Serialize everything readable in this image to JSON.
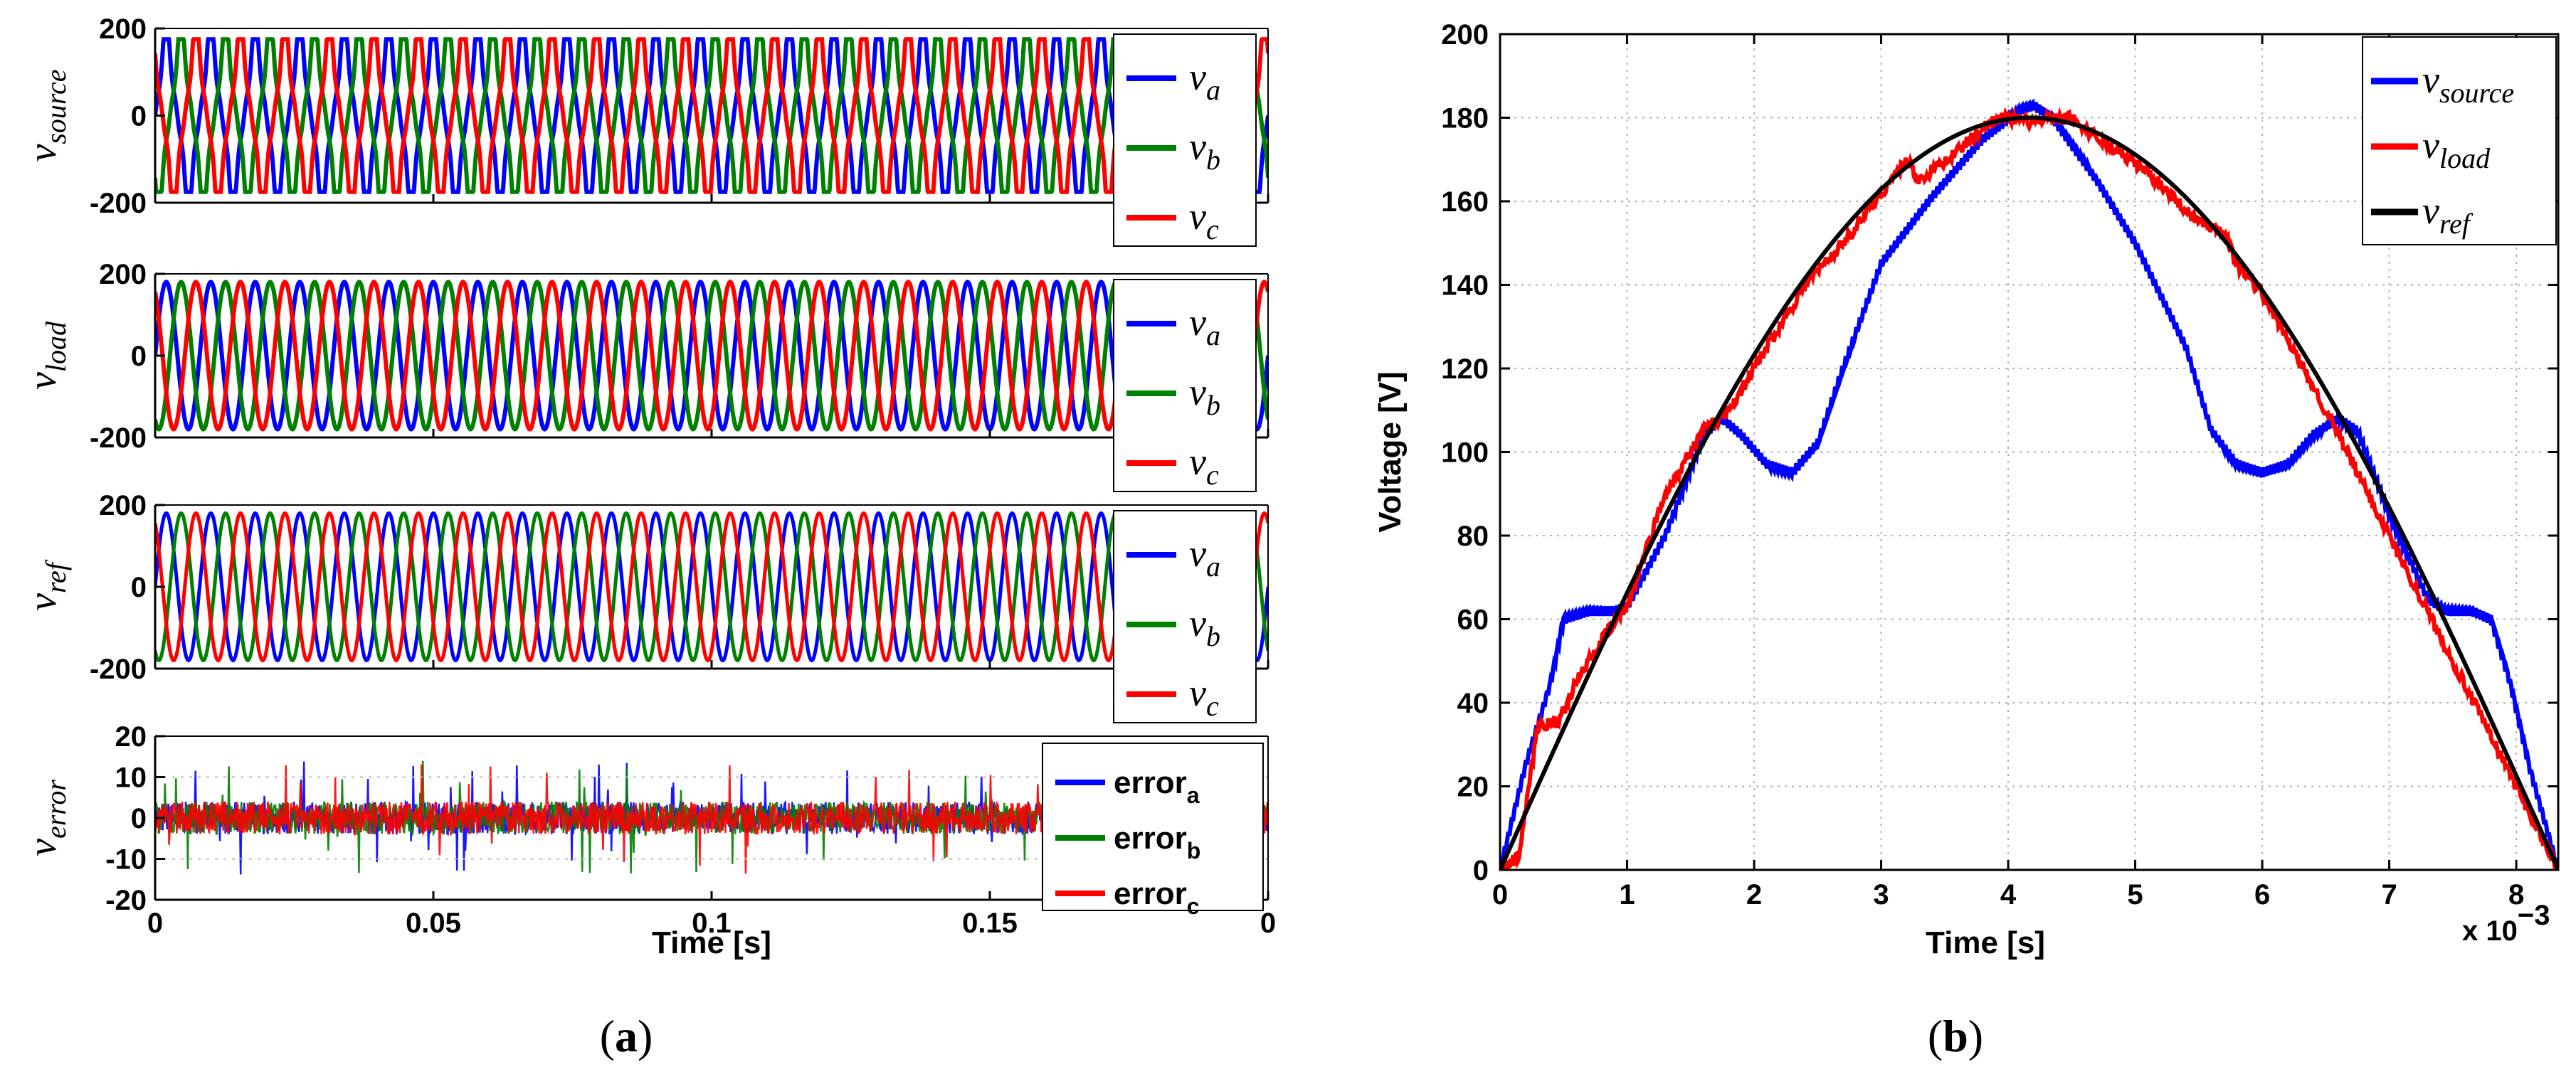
{
  "chart_data": [
    {
      "panel": "a",
      "type": "line",
      "caption": {
        "open": "(",
        "letter": "a",
        "close": ")"
      },
      "xlabel": "Time [s]",
      "x_ticks": [
        "0",
        "0.05",
        "0.1",
        "0.15",
        "0"
      ],
      "xlim": [
        0,
        0.2
      ],
      "subplots": [
        {
          "ylabel": {
            "base": "v",
            "sub": "source"
          },
          "ylim": [
            -200,
            200
          ],
          "y_ticks": [
            "200",
            "0",
            "-200"
          ],
          "signal": "distorted three-phase sine, amplitude ~180 V, ~120 Hz cycles shown",
          "series": [
            {
              "name": "v_a",
              "legend_base": "v",
              "legend_sub": "a",
              "color": "#0000ff"
            },
            {
              "name": "v_b",
              "legend_base": "v",
              "legend_sub": "b",
              "color": "#008000"
            },
            {
              "name": "v_c",
              "legend_base": "v",
              "legend_sub": "c",
              "color": "#ff0000"
            }
          ]
        },
        {
          "ylabel": {
            "base": "v",
            "sub": "load"
          },
          "ylim": [
            -200,
            200
          ],
          "y_ticks": [
            "200",
            "0",
            "-200"
          ],
          "signal": "three-phase sine, amplitude ~180 V",
          "series": [
            {
              "name": "v_a",
              "legend_base": "v",
              "legend_sub": "a",
              "color": "#0000ff"
            },
            {
              "name": "v_b",
              "legend_base": "v",
              "legend_sub": "b",
              "color": "#008000"
            },
            {
              "name": "v_c",
              "legend_base": "v",
              "legend_sub": "c",
              "color": "#ff0000"
            }
          ]
        },
        {
          "ylabel": {
            "base": "v",
            "sub": "ref"
          },
          "ylim": [
            -200,
            200
          ],
          "y_ticks": [
            "200",
            "0",
            "-200"
          ],
          "signal": "ideal three-phase sine, amplitude ~180 V",
          "series": [
            {
              "name": "v_a",
              "legend_base": "v",
              "legend_sub": "a",
              "color": "#0000ff"
            },
            {
              "name": "v_b",
              "legend_base": "v",
              "legend_sub": "b",
              "color": "#008000"
            },
            {
              "name": "v_c",
              "legend_base": "v",
              "legend_sub": "c",
              "color": "#ff0000"
            }
          ]
        },
        {
          "ylabel": {
            "base": "v",
            "sub": "error"
          },
          "ylim": [
            -20,
            20
          ],
          "y_ticks": [
            "20",
            "10",
            "0",
            "-10",
            "-20"
          ],
          "signal": "noise around 0, mostly within ±5 V with spikes up to ±15 V",
          "series": [
            {
              "name": "error_a",
              "legend_base": "error",
              "legend_sub": "a",
              "color": "#0000ff"
            },
            {
              "name": "error_b",
              "legend_base": "error",
              "legend_sub": "b",
              "color": "#008000"
            },
            {
              "name": "error_c",
              "legend_base": "error",
              "legend_sub": "c",
              "color": "#ff0000"
            }
          ]
        }
      ]
    },
    {
      "panel": "b",
      "type": "line",
      "caption": {
        "open": "(",
        "letter": "b",
        "close": ")"
      },
      "xlabel": "Time [s]",
      "ylabel": "Voltage [V]",
      "x_multiplier": "x 10",
      "x_multiplier_exp": "−3",
      "xlim": [
        0,
        8.33
      ],
      "ylim": [
        0,
        200
      ],
      "x_ticks": [
        "0",
        "1",
        "2",
        "3",
        "4",
        "5",
        "6",
        "7",
        "8"
      ],
      "y_ticks": [
        "0",
        "20",
        "40",
        "60",
        "80",
        "100",
        "120",
        "140",
        "160",
        "180",
        "200"
      ],
      "grid": true,
      "legend_position": "top-right",
      "series": [
        {
          "name": "v_source",
          "legend_base": "v",
          "legend_sub": "source",
          "color": "#0000ff",
          "x": [
            0,
            0.2,
            0.4,
            0.5,
            0.7,
            0.9,
            1.0,
            1.3,
            1.6,
            1.75,
            1.9,
            2.1,
            2.3,
            2.5,
            2.7,
            3.0,
            3.4,
            3.8,
            4.1,
            4.2,
            4.35,
            4.7,
            5.0,
            5.4,
            5.6,
            5.8,
            6.0,
            6.2,
            6.4,
            6.6,
            6.75,
            7.0,
            7.3,
            7.45,
            7.65,
            7.8,
            7.95,
            8.1,
            8.33
          ],
          "y": [
            0,
            25,
            45,
            60,
            62,
            62,
            63,
            80,
            104,
            108,
            104,
            97,
            95,
            102,
            120,
            145,
            161,
            175,
            182,
            183,
            180,
            165,
            150,
            125,
            105,
            97,
            95,
            97,
            104,
            108,
            105,
            85,
            65,
            62,
            62,
            60,
            45,
            25,
            0
          ]
        },
        {
          "name": "v_load",
          "legend_base": "v",
          "legend_sub": "load",
          "color": "#ff0000",
          "x": [
            0,
            0.15,
            0.3,
            0.45,
            0.6,
            0.8,
            1.0,
            1.3,
            1.6,
            1.8,
            2.0,
            2.4,
            2.7,
            3.0,
            3.2,
            3.3,
            3.6,
            3.9,
            4.2,
            4.5,
            4.8,
            5.1,
            5.5,
            5.7,
            5.8,
            6.0,
            6.5,
            7.0,
            7.5,
            8.0,
            8.33
          ],
          "y": [
            0,
            3,
            35,
            35,
            45,
            55,
            63,
            90,
            105,
            110,
            120,
            140,
            150,
            162,
            170,
            165,
            172,
            180,
            179,
            180,
            173,
            167,
            155,
            153,
            145,
            138,
            110,
            80,
            50,
            20,
            0
          ]
        },
        {
          "name": "v_ref",
          "legend_base": "v",
          "legend_sub": "ref",
          "color": "#000000",
          "function": "180*sin(pi*t/8.333)",
          "x": [
            0,
            0.5,
            1,
            1.5,
            2,
            2.5,
            3,
            3.5,
            4,
            4.17,
            4.5,
            5,
            5.5,
            6,
            6.5,
            7,
            7.5,
            8,
            8.33
          ],
          "y": [
            0,
            33,
            66,
            96,
            123,
            146,
            163,
            175,
            180,
            180,
            179,
            173,
            159,
            141,
            117,
            89,
            56,
            22,
            0
          ]
        }
      ]
    }
  ]
}
